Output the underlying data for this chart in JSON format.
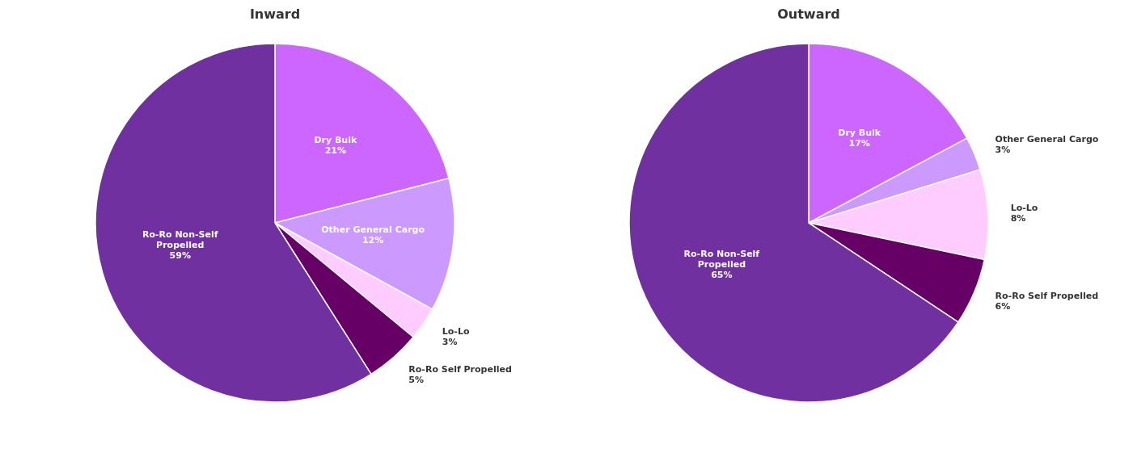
{
  "chart_data": [
    {
      "type": "pie",
      "title": "Inward",
      "categories": [
        "Dry Bulk",
        "Other General Cargo",
        "Lo-Lo",
        "Ro-Ro Self Propelled",
        "Ro-Ro Non-Self Propelled"
      ],
      "values": [
        21,
        12,
        3,
        5,
        59
      ],
      "colors": [
        "#cc66ff",
        "#cc99ff",
        "#ffccff",
        "#660066",
        "#7030a0"
      ],
      "value_labels": [
        "21%",
        "12%",
        "3%",
        "5%",
        "59%"
      ]
    },
    {
      "type": "pie",
      "title": "Outward",
      "categories": [
        "Dry Bulk",
        "Other General Cargo",
        "Lo-Lo",
        "Ro-Ro Self Propelled",
        "Ro-Ro Non-Self Propelled"
      ],
      "values": [
        17,
        3,
        8,
        6,
        65
      ],
      "colors": [
        "#cc66ff",
        "#cc99ff",
        "#ffccff",
        "#660066",
        "#7030a0"
      ],
      "value_labels": [
        "17%",
        "3%",
        "8%",
        "6%",
        "65%"
      ]
    }
  ]
}
